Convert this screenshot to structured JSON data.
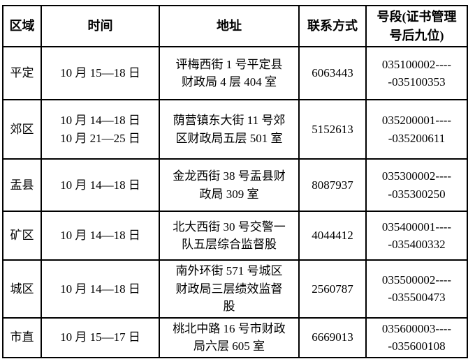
{
  "page": {
    "background_color": "#ffffff",
    "text_color": "#000000",
    "border_color": "#000000"
  },
  "table": {
    "headers": [
      "区域",
      "时间",
      "地址",
      "联系方式",
      "号段(证书管理\n号后九位)"
    ],
    "rows": [
      {
        "region": "平定",
        "time": "10 月 15—18 日",
        "address": "评梅西街 1 号平定县\n财政局 4 层 404 室",
        "contact": "6063443",
        "range": "035100002----\n-035100353"
      },
      {
        "region": "郊区",
        "time": "10 月 14—18 日\n10 月 21—25 日",
        "address": "荫营镇东大街 11 号郊\n区财政局五层 501 室",
        "contact": "5152613",
        "range": "035200001----\n-035200611"
      },
      {
        "region": "盂县",
        "time": "10 月 14—18 日",
        "address": "金龙西街 38 号盂县财\n政局 309 室",
        "contact": "8087937",
        "range": "035300002----\n-035300250"
      },
      {
        "region": "矿区",
        "time": "10 月 14—18 日",
        "address": "北大西街 30 号交警一\n队五层综合监督股",
        "contact": "4044412",
        "range": "035400001----\n-035400332"
      },
      {
        "region": "城区",
        "time": "10 月 14—18 日",
        "address": "南外环街 571 号城区\n财政局三层绩效监督\n股",
        "contact": "2560787",
        "range": "035500002----\n-035500473"
      },
      {
        "region": "市直",
        "time": "10 月 15—17 日",
        "address": "桃北中路 16 号市财政\n局六层 605 室",
        "contact": "6669013",
        "range": "035600003----\n-035600108"
      }
    ]
  }
}
